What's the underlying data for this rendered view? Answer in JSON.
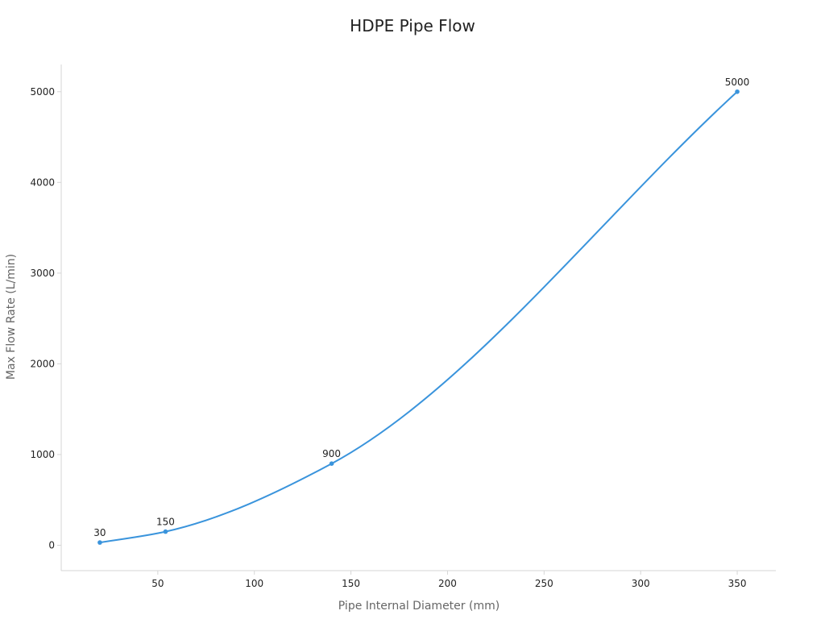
{
  "chart_data": {
    "type": "line",
    "title": "HDPE Pipe Flow",
    "xlabel": "Pipe Internal Diameter (mm)",
    "ylabel": "Max Flow Rate (L/min)",
    "x": [
      20,
      54,
      140,
      350
    ],
    "series": [
      {
        "values": [
          30,
          150,
          900,
          5000
        ],
        "labels": [
          "30",
          "150",
          "900",
          "5000"
        ]
      }
    ],
    "xlim": [
      0,
      370
    ],
    "ylim": [
      -280,
      5300
    ],
    "x_ticks": [
      50,
      100,
      150,
      200,
      250,
      300,
      350
    ],
    "y_ticks": [
      0,
      1000,
      2000,
      3000,
      4000,
      5000
    ],
    "grid": false,
    "legend": "none",
    "line_color": "#3a94dc"
  }
}
